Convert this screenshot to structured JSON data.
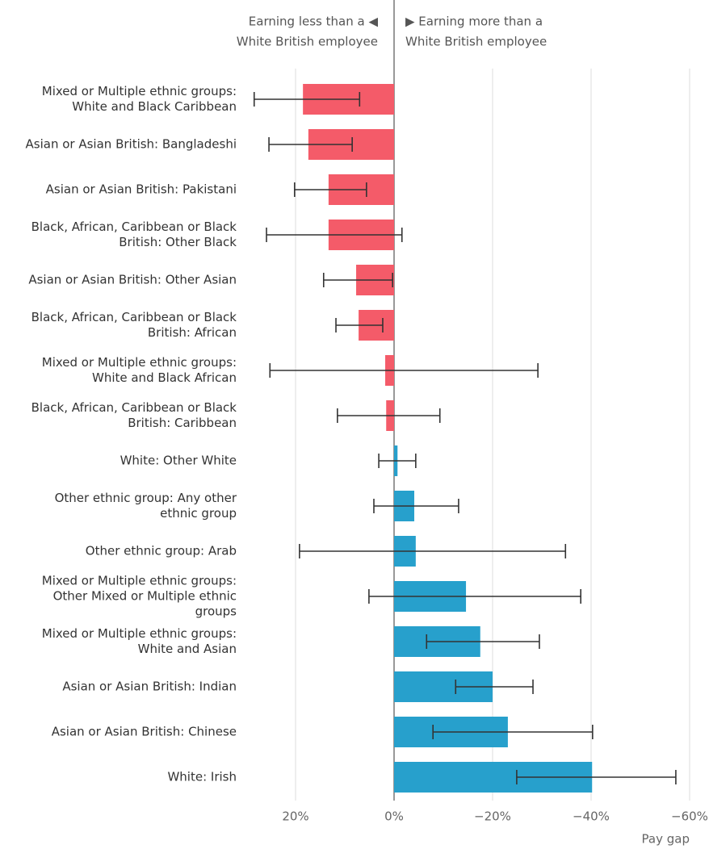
{
  "chart_data": {
    "type": "bar",
    "orientation": "horizontal",
    "annotations": [
      [
        "Earning less than a ◀",
        "White British employee"
      ],
      [
        "▶ Earning more than a",
        "White British employee"
      ]
    ],
    "x_label": "Pay gap",
    "categories": [
      [
        "Mixed or Multiple ethnic groups:",
        "White and Black Caribbean"
      ],
      [
        "Asian or Asian British: Bangladeshi"
      ],
      [
        "Asian or Asian British: Pakistani"
      ],
      [
        "Black, African, Caribbean or Black",
        "British: Other Black"
      ],
      [
        "Asian or Asian British: Other Asian"
      ],
      [
        "Black, African, Caribbean or Black",
        "British: African"
      ],
      [
        "Mixed or Multiple ethnic groups:",
        "White and Black African"
      ],
      [
        "Black, African, Caribbean or Black",
        "British: Caribbean"
      ],
      [
        "White: Other White"
      ],
      [
        "Other ethnic group: Any other",
        "ethnic group"
      ],
      [
        "Other ethnic group: Arab"
      ],
      [
        "Mixed or Multiple ethnic groups:",
        "Other Mixed or Multiple ethnic",
        "groups"
      ],
      [
        "Mixed or Multiple ethnic groups:",
        "White and Asian"
      ],
      [
        "Asian or Asian British: Indian"
      ],
      [
        "Asian or Asian British: Chinese"
      ],
      [
        "White: Irish"
      ]
    ],
    "values": [
      18.5,
      17.4,
      13.3,
      13.3,
      7.7,
      7.2,
      1.8,
      1.6,
      -0.7,
      -4.1,
      -4.4,
      -14.6,
      -17.5,
      -20.0,
      -23.1,
      -40.2
    ],
    "ci_upper": [
      28.4,
      25.4,
      20.2,
      25.9,
      14.3,
      11.8,
      25.2,
      11.5,
      3.1,
      4.1,
      19.2,
      5.1,
      -6.6,
      -12.5,
      -7.9,
      -24.9
    ],
    "ci_lower": [
      7.0,
      8.5,
      5.6,
      -1.6,
      0.3,
      2.3,
      -29.2,
      -9.3,
      -4.4,
      -13.1,
      -34.8,
      -37.9,
      -29.5,
      -28.2,
      -40.3,
      -57.2
    ],
    "positive_color": "#f45b69",
    "negative_color": "#27a0cc",
    "xlim": [
      30,
      -60
    ],
    "xticks": [
      {
        "value": 20,
        "label": "20%"
      },
      {
        "value": 0,
        "label": "0%"
      },
      {
        "value": -20,
        "label": "−20%"
      },
      {
        "value": -40,
        "label": "−40%"
      },
      {
        "value": -60,
        "label": "−60%"
      }
    ],
    "grid": true
  }
}
